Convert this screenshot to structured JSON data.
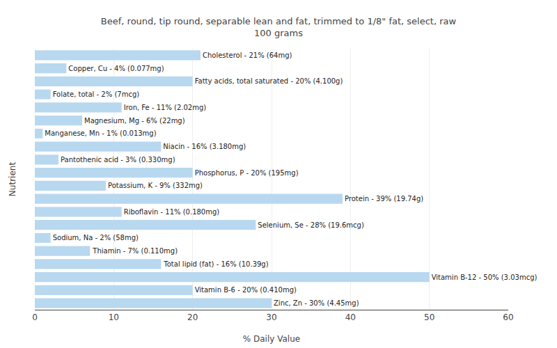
{
  "chart_data": {
    "type": "bar",
    "orientation": "horizontal",
    "title": "Beef, round, tip round, separable lean and fat, trimmed to 1/8\" fat, select, raw\n100 grams",
    "xlabel": "% Daily Value",
    "ylabel": "Nutrient",
    "categories": [
      "Cholesterol - 21% (64mg)",
      "Copper, Cu - 4% (0.077mg)",
      "Fatty acids, total saturated - 20% (4.100g)",
      "Folate, total - 2% (7mcg)",
      "Iron, Fe - 11% (2.02mg)",
      "Magnesium, Mg - 6% (22mg)",
      "Manganese, Mn - 1% (0.013mg)",
      "Niacin - 16% (3.180mg)",
      "Pantothenic acid - 3% (0.330mg)",
      "Phosphorus, P - 20% (195mg)",
      "Potassium, K - 9% (332mg)",
      "Protein - 39% (19.74g)",
      "Riboflavin - 11% (0.180mg)",
      "Selenium, Se - 28% (19.6mcg)",
      "Sodium, Na - 2% (58mg)",
      "Thiamin - 7% (0.110mg)",
      "Total lipid (fat) - 16% (10.39g)",
      "Vitamin B-12 - 50% (3.03mcg)",
      "Vitamin B-6 - 20% (0.410mg)",
      "Zinc, Zn - 30% (4.45mg)"
    ],
    "values": [
      21,
      4,
      20,
      2,
      11,
      6,
      1,
      16,
      3,
      20,
      9,
      39,
      11,
      28,
      2,
      7,
      16,
      50,
      20,
      30
    ],
    "color": "#b8d8f0",
    "xlim": [
      0,
      60
    ],
    "xticks": [
      0,
      10,
      20,
      30,
      40,
      50,
      60
    ],
    "grid": true,
    "tick_labels": "x"
  }
}
